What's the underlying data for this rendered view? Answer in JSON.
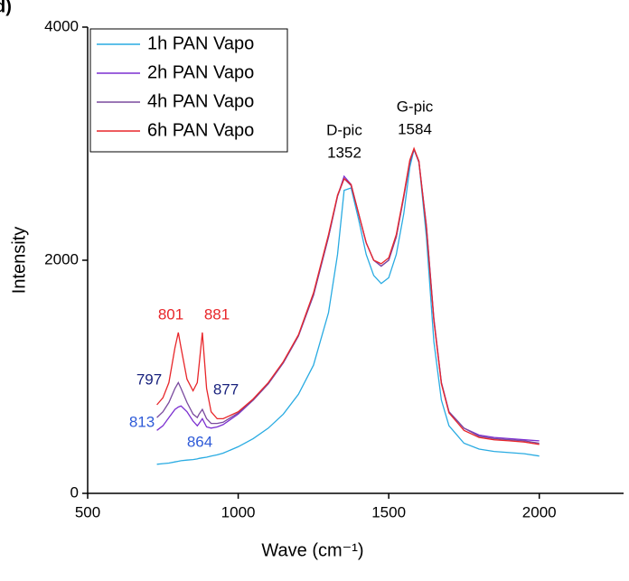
{
  "panel_label": "d)",
  "chart_data": {
    "type": "line",
    "xlabel": "Wave (cm⁻¹)",
    "ylabel": "Intensity",
    "x": [
      730,
      750,
      770,
      790,
      801,
      810,
      830,
      850,
      864,
      870,
      881,
      895,
      910,
      930,
      950,
      1000,
      1050,
      1100,
      1150,
      1200,
      1250,
      1300,
      1330,
      1352,
      1375,
      1400,
      1425,
      1450,
      1475,
      1500,
      1525,
      1550,
      1570,
      1584,
      1600,
      1625,
      1650,
      1675,
      1700,
      1750,
      1800,
      1850,
      1900,
      1950,
      2000
    ],
    "series": [
      {
        "name": "1h PAN Vapo",
        "color": "#29abe2",
        "values": [
          250,
          255,
          260,
          270,
          275,
          280,
          285,
          290,
          295,
          300,
          305,
          310,
          320,
          330,
          345,
          400,
          470,
          560,
          680,
          850,
          1100,
          1550,
          2050,
          2600,
          2620,
          2350,
          2050,
          1870,
          1800,
          1850,
          2050,
          2400,
          2800,
          2950,
          2850,
          2200,
          1300,
          800,
          580,
          430,
          380,
          360,
          350,
          340,
          320
        ]
      },
      {
        "name": "2h PAN Vapo",
        "color": "#7b2fd0",
        "values": [
          540,
          580,
          650,
          720,
          740,
          750,
          700,
          620,
          580,
          600,
          640,
          570,
          560,
          570,
          590,
          680,
          800,
          940,
          1120,
          1350,
          1700,
          2200,
          2550,
          2720,
          2650,
          2400,
          2150,
          2000,
          1950,
          2000,
          2200,
          2550,
          2850,
          2950,
          2850,
          2300,
          1500,
          950,
          700,
          560,
          500,
          480,
          470,
          460,
          450
        ]
      },
      {
        "name": "4h PAN Vapo",
        "color": "#7a4a9e",
        "values": [
          650,
          700,
          780,
          900,
          950,
          900,
          780,
          680,
          650,
          680,
          720,
          640,
          600,
          600,
          610,
          690,
          800,
          940,
          1120,
          1350,
          1700,
          2200,
          2550,
          2700,
          2640,
          2400,
          2150,
          2000,
          1950,
          2000,
          2200,
          2540,
          2840,
          2950,
          2840,
          2290,
          1490,
          950,
          700,
          560,
          490,
          470,
          460,
          450,
          430
        ]
      },
      {
        "name": "6h PAN Vapo",
        "color": "#e8262a",
        "values": [
          760,
          820,
          950,
          1250,
          1380,
          1250,
          980,
          880,
          950,
          1100,
          1380,
          900,
          700,
          640,
          640,
          700,
          810,
          950,
          1130,
          1360,
          1720,
          2220,
          2560,
          2700,
          2650,
          2400,
          2150,
          2000,
          1970,
          2020,
          2220,
          2560,
          2860,
          2960,
          2850,
          2280,
          1480,
          940,
          690,
          540,
          480,
          460,
          450,
          440,
          420
        ]
      }
    ],
    "xlim": [
      500,
      2280
    ],
    "ylim": [
      0,
      4000
    ],
    "xticks": [
      500,
      1000,
      1500,
      2000
    ],
    "yticks": [
      0,
      2000,
      4000
    ],
    "legend": "upper left",
    "annotations": [
      {
        "text": "D-pic",
        "color": "#000000"
      },
      {
        "text": "1352",
        "color": "#000000"
      },
      {
        "text": "G-pic",
        "color": "#000000"
      },
      {
        "text": "1584",
        "color": "#000000"
      },
      {
        "text": "801",
        "color": "#e8262a"
      },
      {
        "text": "881",
        "color": "#e8262a"
      },
      {
        "text": "797",
        "color": "#1a237e"
      },
      {
        "text": "877",
        "color": "#1a237e"
      },
      {
        "text": "813",
        "color": "#2f5bd8"
      },
      {
        "text": "864",
        "color": "#2f5bd8"
      }
    ]
  }
}
